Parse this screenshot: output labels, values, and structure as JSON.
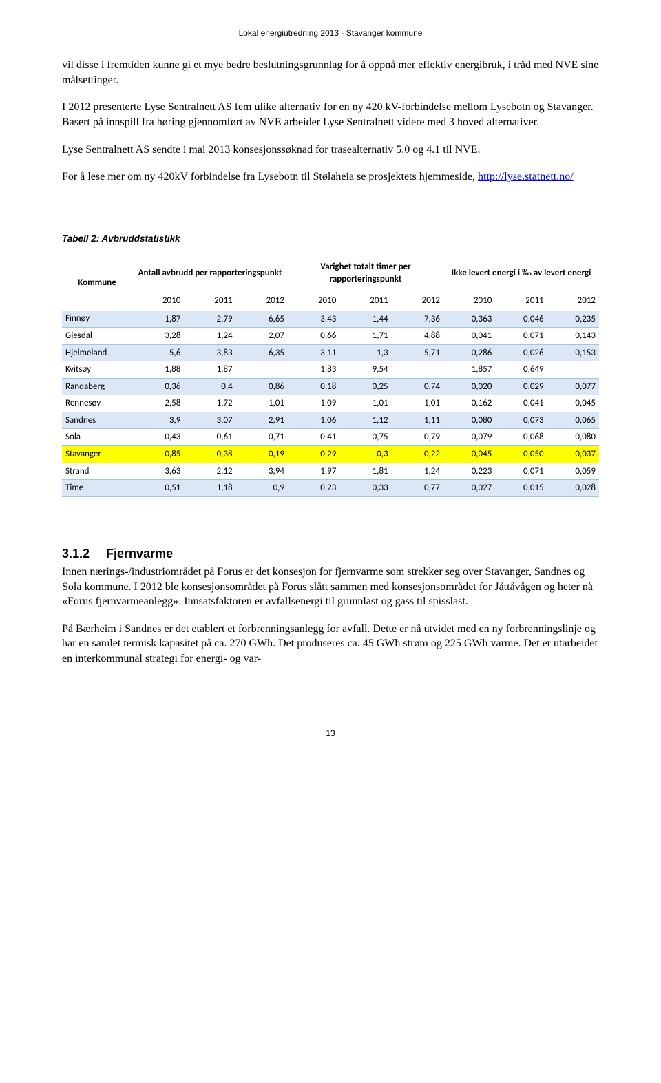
{
  "header": "Lokal energiutredning 2013  -  Stavanger kommune",
  "p1": "vil disse i fremtiden kunne gi et mye bedre beslutningsgrunnlag for å oppnå mer effektiv energibruk, i tråd med NVE sine målsettinger.",
  "p2": "I 2012 presenterte Lyse Sentralnett AS fem ulike alternativ for en ny 420 kV-forbindelse mellom Lysebotn og Stavanger. Basert på innspill fra høring gjennomført av NVE arbeider Lyse Sentralnett videre med 3 hoved alternativer.",
  "p3": "Lyse Sentralnett AS sendte i mai 2013 konsesjonssøknad for trasealternativ 5.0 og 4.1 til NVE.",
  "p4_a": "For å lese mer om ny 420kV forbindelse fra Lysebotn til Stølaheia se prosjektets hjemmeside, ",
  "p4_link": "http://lyse.statnett.no/",
  "table_caption": "Tabell 2: Avbruddstatistikk",
  "col_kommune": "Kommune",
  "col1": "Antall avbrudd per rapporteringspunkt",
  "col2": "Varighet totalt timer per rapporteringspunkt",
  "col3": "Ikke levert energi i ‰ av levert energi",
  "y2010": "2010",
  "y2011": "2011",
  "y2012": "2012",
  "rows": [
    {
      "k": "Finnøy",
      "a": [
        "1,87",
        "2,79",
        "6,65"
      ],
      "b": [
        "3,43",
        "1,44",
        "7,36"
      ],
      "c": [
        "0,363",
        "0,046",
        "0,235"
      ]
    },
    {
      "k": "Gjesdal",
      "a": [
        "3,28",
        "1,24",
        "2,07"
      ],
      "b": [
        "0,66",
        "1,71",
        "4,88"
      ],
      "c": [
        "0,041",
        "0,071",
        "0,143"
      ]
    },
    {
      "k": "Hjelmeland",
      "a": [
        "5,6",
        "3,83",
        "6,35"
      ],
      "b": [
        "3,11",
        "1,3",
        "5,71"
      ],
      "c": [
        "0,286",
        "0,026",
        "0,153"
      ]
    },
    {
      "k": "Kvitsøy",
      "a": [
        "1,88",
        "1,87",
        ""
      ],
      "b": [
        "1,83",
        "9,54",
        ""
      ],
      "c": [
        "1,857",
        "0,649",
        ""
      ]
    },
    {
      "k": "Randaberg",
      "a": [
        "0,36",
        "0,4",
        "0,86"
      ],
      "b": [
        "0,18",
        "0,25",
        "0,74"
      ],
      "c": [
        "0,020",
        "0,029",
        "0,077"
      ]
    },
    {
      "k": "Rennesøy",
      "a": [
        "2,58",
        "1,72",
        "1,01"
      ],
      "b": [
        "1,09",
        "1,01",
        "1,01"
      ],
      "c": [
        "0,162",
        "0,041",
        "0,045"
      ]
    },
    {
      "k": "Sandnes",
      "a": [
        "3,9",
        "3,07",
        "2,91"
      ],
      "b": [
        "1,06",
        "1,12",
        "1,11"
      ],
      "c": [
        "0,080",
        "0,073",
        "0,065"
      ]
    },
    {
      "k": "Sola",
      "a": [
        "0,43",
        "0,61",
        "0,71"
      ],
      "b": [
        "0,41",
        "0,75",
        "0,79"
      ],
      "c": [
        "0,079",
        "0,068",
        "0,080"
      ]
    },
    {
      "k": "Stavanger",
      "a": [
        "0,85",
        "0,38",
        "0,19"
      ],
      "b": [
        "0,29",
        "0,3",
        "0,22"
      ],
      "c": [
        "0,045",
        "0,050",
        "0,037"
      ]
    },
    {
      "k": "Strand",
      "a": [
        "3,63",
        "2,12",
        "3,94"
      ],
      "b": [
        "1,97",
        "1,81",
        "1,24"
      ],
      "c": [
        "0,223",
        "0,071",
        "0,059"
      ]
    },
    {
      "k": "Time",
      "a": [
        "0,51",
        "1,18",
        "0,9"
      ],
      "b": [
        "0,23",
        "0,33",
        "0,77"
      ],
      "c": [
        "0,027",
        "0,015",
        "0,028"
      ]
    }
  ],
  "section_num": "3.1.2",
  "section_title": "Fjernvarme",
  "p5": "Innen nærings-/industriområdet på Forus er det konsesjon for fjernvarme som strekker seg over Stavanger, Sandnes og Sola kommune. I 2012 ble konsesjonsområdet på Forus slått sammen med konsesjonsområdet for Jåttåvågen og heter nå «Forus fjernvarmeanlegg». Innsatsfaktoren er avfallsenergi til grunnlast og gass til spisslast.",
  "p6": "På Bærheim i Sandnes er det etablert et forbrenningsanlegg for avfall. Dette er nå utvidet med en ny forbrenningslinje og har en samlet termisk kapasitet på ca. 270 GWh.  Det produseres ca. 45 GWh strøm og 225 GWh varme. Det er utarbeidet en interkommunal strategi for energi- og var-",
  "page_number": "13",
  "colors": {
    "stripe": "#dbe7f4",
    "border": "#9ec5e6",
    "highlight": "#ffff00",
    "link": "#0000ee"
  }
}
